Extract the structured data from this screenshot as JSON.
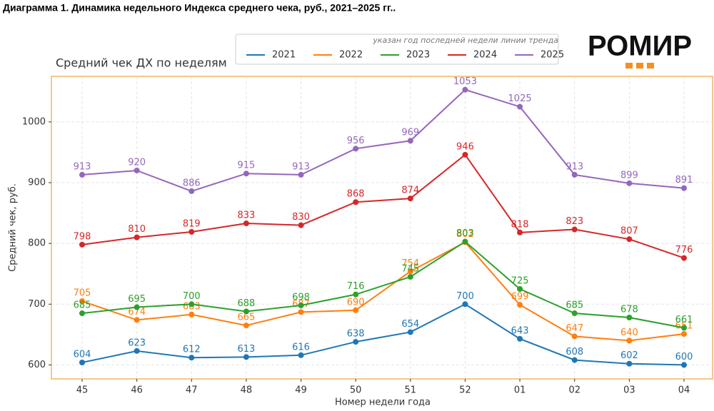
{
  "header": "Диаграмма 1. Динамика недельного Индекса среднего чека, руб., 2021–2025 гг..",
  "logo": "РОМИР",
  "chart_data": {
    "type": "line",
    "title": "Средний чек ДХ по неделям",
    "legend_note": "указан год последней недели линии тренда",
    "x_label": "Номер недели года",
    "y_label": "Средний чек, руб.",
    "categories": [
      "45",
      "46",
      "47",
      "48",
      "49",
      "50",
      "51",
      "52",
      "01",
      "02",
      "03",
      "04"
    ],
    "ylim": [
      577,
      1075
    ],
    "yticks": [
      600,
      700,
      800,
      900,
      1000
    ],
    "grid": true,
    "series": [
      {
        "name": "2021",
        "color": "#1f77b4",
        "values": [
          604,
          623,
          612,
          613,
          616,
          638,
          654,
          700,
          643,
          608,
          602,
          600
        ]
      },
      {
        "name": "2022",
        "color": "#ff7f0e",
        "values": [
          705,
          674,
          683,
          665,
          687,
          690,
          754,
          802,
          699,
          647,
          640,
          651
        ]
      },
      {
        "name": "2023",
        "color": "#2ca02c",
        "values": [
          685,
          695,
          700,
          688,
          698,
          716,
          745,
          803,
          725,
          685,
          678,
          661
        ]
      },
      {
        "name": "2024",
        "color": "#d62728",
        "values": [
          798,
          810,
          819,
          833,
          830,
          868,
          874,
          946,
          818,
          823,
          807,
          776
        ]
      },
      {
        "name": "2025",
        "color": "#9467bd",
        "values": [
          913,
          920,
          886,
          915,
          913,
          956,
          969,
          1053,
          1025,
          913,
          899,
          891
        ]
      }
    ]
  }
}
